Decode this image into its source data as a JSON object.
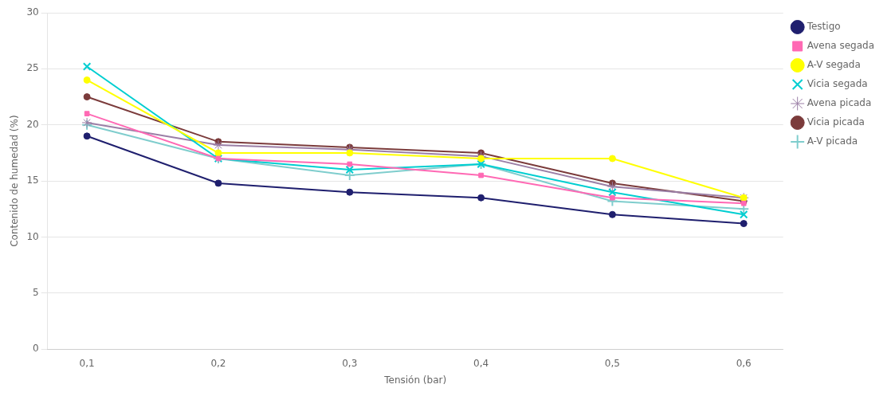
{
  "chart_data": {
    "type": "line",
    "x": [
      0.1,
      0.2,
      0.3,
      0.4,
      0.5,
      0.6
    ],
    "series": [
      {
        "name": "Testigo",
        "color": "#1f1f6e",
        "marker": "circle",
        "values": [
          19.0,
          14.8,
          14.0,
          13.5,
          12.0,
          11.2
        ]
      },
      {
        "name": "Avena segada",
        "color": "#ff69b4",
        "marker": "square",
        "values": [
          21.0,
          17.0,
          16.5,
          15.5,
          13.5,
          13.0
        ]
      },
      {
        "name": "A-V segada",
        "color": "#ffff00",
        "marker": "circle",
        "values": [
          24.0,
          17.5,
          17.5,
          17.0,
          17.0,
          13.5
        ]
      },
      {
        "name": "Vicia segada",
        "color": "#00ced1",
        "marker": "x",
        "values": [
          25.2,
          17.0,
          16.0,
          16.5,
          14.0,
          12.0
        ]
      },
      {
        "name": "Avena picada",
        "color": "#9b7fa6",
        "marker": "star",
        "values": [
          20.2,
          18.2,
          17.8,
          17.2,
          14.5,
          13.5
        ]
      },
      {
        "name": "Vicia picada",
        "color": "#7b3b3b",
        "marker": "circle",
        "values": [
          22.5,
          18.5,
          18.0,
          17.5,
          14.8,
          13.2
        ]
      },
      {
        "name": "A-V picada",
        "color": "#7fcdcd",
        "marker": "plus",
        "values": [
          20.0,
          17.0,
          15.5,
          16.5,
          13.2,
          12.5
        ]
      }
    ],
    "xlabel": "Tensión (bar)",
    "ylabel": "Contenido de humedad (%)",
    "xlim": [
      0.07,
      0.63
    ],
    "xticks": [
      {
        "value": 0.1,
        "label": "0,1"
      },
      {
        "value": 0.2,
        "label": "0,2"
      },
      {
        "value": 0.3,
        "label": "0,3"
      },
      {
        "value": 0.4,
        "label": "0,4"
      },
      {
        "value": 0.5,
        "label": "0,5"
      },
      {
        "value": 0.6,
        "label": "0,6"
      }
    ],
    "ylim": [
      0,
      30
    ],
    "yticks": [
      0,
      5,
      10,
      15,
      20,
      25,
      30
    ],
    "grid": "y",
    "legend": "right"
  }
}
